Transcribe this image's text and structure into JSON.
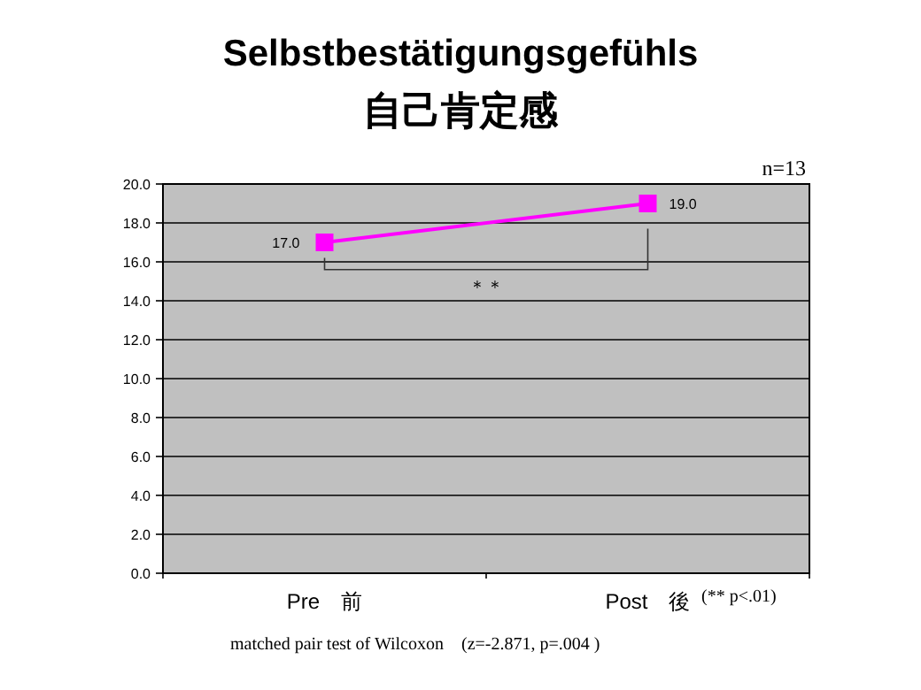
{
  "chart_data": {
    "type": "line",
    "title": "Selbstbestätigungsgefühls",
    "subtitle": "自己肯定感",
    "categories": [
      "Pre　前",
      "Post　後"
    ],
    "series": [
      {
        "color": "#ff00ff",
        "values": [
          17.0,
          19.0
        ],
        "value_labels": [
          "17.0",
          "19.0"
        ]
      }
    ],
    "ylim": [
      0,
      20
    ],
    "yticks": [
      {
        "value": 0,
        "label": "0.0"
      },
      {
        "value": 2,
        "label": "2.0"
      },
      {
        "value": 4,
        "label": "4.0"
      },
      {
        "value": 6,
        "label": "6.0"
      },
      {
        "value": 8,
        "label": "8.0"
      },
      {
        "value": 10,
        "label": "10.0"
      },
      {
        "value": 12,
        "label": "12.0"
      },
      {
        "value": 14,
        "label": "14.0"
      },
      {
        "value": 16,
        "label": "16.0"
      },
      {
        "value": 18,
        "label": "18.0"
      },
      {
        "value": 20,
        "label": "20.0"
      }
    ],
    "grid": "y",
    "marker": "square",
    "line_style": "solid",
    "annotations": [
      "n=13",
      "＊＊",
      "(** p<.01)",
      "matched pair test of Wilcoxon　(z=-2.871, p=.004 )"
    ]
  }
}
